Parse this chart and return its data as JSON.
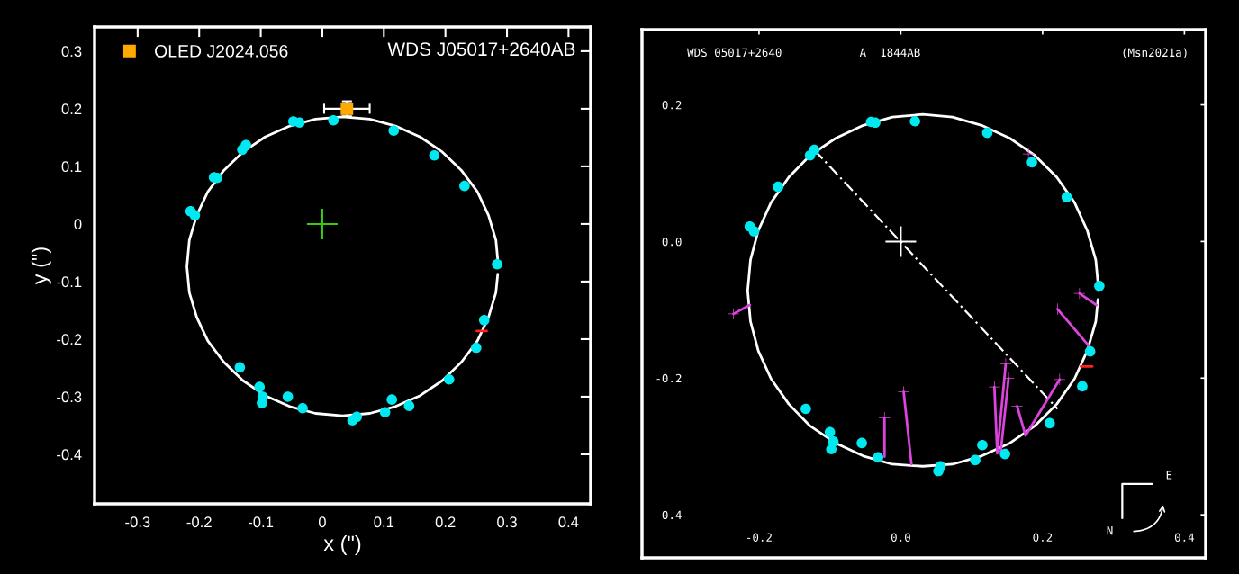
{
  "chart_data": [
    {
      "type": "scatter",
      "xlabel": "x (\")",
      "ylabel": "y (\")",
      "xlim": [
        -0.37,
        0.436
      ],
      "ylim": [
        -0.486,
        0.342
      ],
      "xticks": [
        -0.3,
        -0.2,
        -0.1,
        0,
        0.1,
        0.2,
        0.3,
        0.4
      ],
      "yticks": [
        0.3,
        0.2,
        0.1,
        0,
        -0.1,
        -0.2,
        -0.3,
        -0.4
      ],
      "grid": false,
      "legend": "top left",
      "annotations": [
        "WDS J05017+2640AB"
      ],
      "series": [
        {
          "type": "line",
          "color": "#ffffff",
          "marker": "none",
          "line_style": "solid",
          "x": [
            0.286,
            0.282,
            0.27,
            0.252,
            0.226,
            0.195,
            0.159,
            0.119,
            0.077,
            0.033,
            -0.011,
            -0.053,
            -0.093,
            -0.129,
            -0.16,
            -0.186,
            -0.204,
            -0.216,
            -0.22,
            -0.216,
            -0.204,
            -0.186,
            -0.16,
            -0.129,
            -0.093,
            -0.053,
            -0.011,
            0.033,
            0.077,
            0.119,
            0.159,
            0.195,
            0.226,
            0.252,
            0.27,
            0.282,
            0.285
          ],
          "values": [
            -0.074,
            -0.028,
            0.015,
            0.056,
            0.093,
            0.125,
            0.151,
            0.17,
            0.182,
            0.186,
            0.182,
            0.17,
            0.151,
            0.125,
            0.093,
            0.056,
            0.015,
            -0.028,
            -0.074,
            -0.119,
            -0.162,
            -0.203,
            -0.24,
            -0.272,
            -0.298,
            -0.317,
            -0.329,
            -0.333,
            -0.329,
            -0.317,
            -0.298,
            -0.272,
            -0.24,
            -0.203,
            -0.162,
            -0.119,
            -0.087
          ]
        },
        {
          "type": "scatter",
          "color": "#00e8f0",
          "marker": "circle",
          "x": [
            -0.047,
            -0.037,
            0.018,
            0.116,
            0.182,
            0.231,
            0.284,
            0.263,
            0.25,
            0.206,
            0.141,
            0.113,
            0.102,
            0.056,
            0.049,
            -0.032,
            -0.056,
            -0.097,
            -0.098,
            -0.102,
            -0.134,
            -0.214,
            -0.207,
            -0.176,
            -0.171,
            -0.13,
            -0.124
          ],
          "values": [
            0.178,
            0.176,
            0.18,
            0.162,
            0.119,
            0.066,
            -0.07,
            -0.167,
            -0.215,
            -0.27,
            -0.316,
            -0.305,
            -0.327,
            -0.335,
            -0.341,
            -0.32,
            -0.3,
            -0.3,
            -0.311,
            -0.283,
            -0.249,
            0.022,
            0.015,
            0.081,
            0.08,
            0.129,
            0.137
          ]
        },
        {
          "type": "scatter",
          "name": "OLED J2024.056",
          "color": "#ffaa00",
          "marker": "square",
          "x": [
            0.04
          ],
          "values": [
            0.2
          ],
          "errors": [
            0.013
          ],
          "xerrors": [
            0.037
          ]
        },
        {
          "type": "scatter",
          "color": "#33cc11",
          "marker": "cross",
          "x": [
            0
          ],
          "values": [
            0
          ]
        },
        {
          "type": "line",
          "color": "#ff2020",
          "marker": "none",
          "line_style": "solid",
          "x": [
            0.251,
            0.267
          ],
          "values": [
            -0.186,
            -0.186
          ]
        }
      ]
    },
    {
      "type": "scatter",
      "xlim": [
        -0.365,
        0.43
      ],
      "ylim": [
        -0.463,
        0.31
      ],
      "xticks": [
        {
          "value": -0.2,
          "label": "-0.2"
        },
        {
          "value": 0,
          "label": "0.0"
        },
        {
          "value": 0.2,
          "label": "0.2"
        },
        {
          "value": 0.4,
          "label": "0.4"
        }
      ],
      "yticks": [
        {
          "value": 0.2,
          "label": "0.2"
        },
        {
          "value": 0,
          "label": "0.0"
        },
        {
          "value": -0.2,
          "label": "-0.2"
        },
        {
          "value": -0.4,
          "label": "-0.4"
        }
      ],
      "grid": false,
      "annotations": [
        "WDS 05017+2640",
        "A  1844AB",
        "(Msn2021a)",
        "N",
        "E"
      ],
      "series": [
        {
          "type": "line",
          "color": "#ffffff",
          "marker": "none",
          "line_style": "solid",
          "x": [
            0.279,
            0.275,
            0.263,
            0.245,
            0.22,
            0.189,
            0.154,
            0.114,
            0.073,
            0.031,
            -0.012,
            -0.053,
            -0.092,
            -0.128,
            -0.158,
            -0.183,
            -0.201,
            -0.212,
            -0.216,
            -0.212,
            -0.201,
            -0.183,
            -0.158,
            -0.128,
            -0.092,
            -0.053,
            -0.012,
            0.031,
            0.073,
            0.114,
            0.154,
            0.189,
            0.22,
            0.245,
            0.263,
            0.275,
            0.278
          ],
          "values": [
            -0.072,
            -0.027,
            0.016,
            0.057,
            0.094,
            0.126,
            0.151,
            0.17,
            0.182,
            0.186,
            0.182,
            0.17,
            0.151,
            0.126,
            0.094,
            0.057,
            0.016,
            -0.027,
            -0.072,
            -0.117,
            -0.16,
            -0.201,
            -0.238,
            -0.27,
            -0.295,
            -0.314,
            -0.326,
            -0.329,
            -0.326,
            -0.314,
            -0.295,
            -0.27,
            -0.238,
            -0.201,
            -0.16,
            -0.117,
            -0.085
          ]
        },
        {
          "type": "line",
          "color": "#ffffff",
          "marker": "none",
          "line_style": "dashed",
          "x": [
            -0.122,
            0.221
          ],
          "values": [
            0.134,
            -0.245
          ]
        },
        {
          "type": "line",
          "color": "#dd44dd",
          "marker": "none",
          "line_style": "solid",
          "x": [
            -0.236,
            -0.213,
            null,
            0.252,
            0.276,
            null,
            0.221,
            0.267,
            null,
            0.148,
            0.136,
            null,
            0.152,
            0.141,
            null,
            0.132,
            0.136,
            null,
            0.164,
            0.176,
            null,
            0.224,
            0.176,
            null,
            0.004,
            0.015,
            null,
            -0.023,
            -0.023
          ],
          "values": [
            -0.106,
            -0.093,
            null,
            -0.076,
            -0.093,
            null,
            -0.099,
            -0.155,
            null,
            -0.179,
            -0.31,
            null,
            -0.2,
            -0.307,
            null,
            -0.213,
            -0.31,
            null,
            -0.241,
            -0.284,
            null,
            -0.202,
            -0.284,
            null,
            -0.22,
            -0.326,
            null,
            -0.258,
            -0.315
          ]
        },
        {
          "type": "scatter",
          "color": "#dd44dd",
          "marker": "cross",
          "x": [
            -0.236,
            0.252,
            0.221,
            0.148,
            0.152,
            0.132,
            0.164,
            0.224,
            0.004,
            -0.023,
            0.18
          ],
          "values": [
            -0.106,
            -0.076,
            -0.099,
            -0.179,
            -0.2,
            -0.213,
            -0.241,
            -0.202,
            -0.22,
            -0.258,
            0.128
          ]
        },
        {
          "type": "scatter",
          "color": "#00e8f0",
          "marker": "circle",
          "x": [
            -0.042,
            -0.036,
            0.02,
            0.122,
            0.185,
            0.234,
            0.28,
            0.267,
            0.256,
            0.21,
            0.147,
            0.115,
            0.105,
            0.056,
            0.053,
            -0.032,
            -0.055,
            -0.095,
            -0.098,
            -0.1,
            -0.134,
            -0.213,
            -0.207,
            -0.173,
            -0.128,
            -0.122
          ],
          "values": [
            0.175,
            0.174,
            0.176,
            0.159,
            0.116,
            0.065,
            -0.065,
            -0.161,
            -0.212,
            -0.266,
            -0.311,
            -0.298,
            -0.32,
            -0.329,
            -0.336,
            -0.316,
            -0.295,
            -0.293,
            -0.304,
            -0.279,
            -0.245,
            0.022,
            0.015,
            0.08,
            0.126,
            0.134
          ]
        },
        {
          "type": "scatter",
          "color": "#ffffff",
          "marker": "cross",
          "x": [
            0
          ],
          "values": [
            0
          ]
        },
        {
          "type": "line",
          "color": "#ff2020",
          "marker": "none",
          "line_style": "solid",
          "x": [
            0.254,
            0.27
          ],
          "values": [
            -0.183,
            -0.183
          ]
        }
      ]
    }
  ]
}
